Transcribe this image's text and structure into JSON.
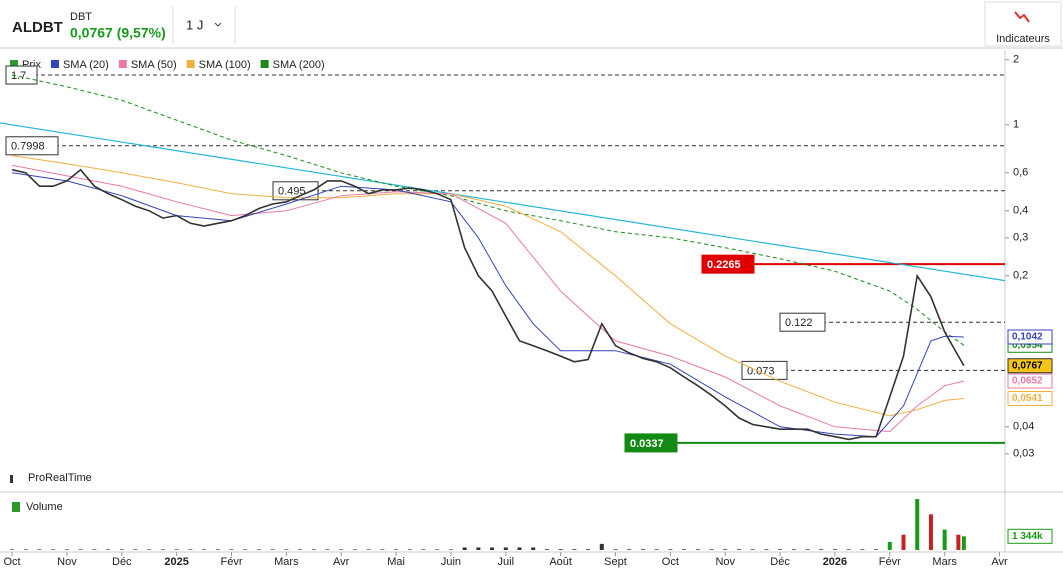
{
  "header": {
    "symbol": "ALDBT",
    "exchange": "DBT",
    "quote": "0,0767 (9,57%)",
    "period": "1 J",
    "indicators_button": "Indicateurs"
  },
  "legend": {
    "price": "Prix",
    "sma20": "SMA (20)",
    "sma50": "SMA (50)",
    "sma100": "SMA (100)",
    "sma200": "SMA (200)",
    "brand": "ProRealTime",
    "volume": "Volume"
  },
  "chart_data": {
    "type": "line",
    "log_scale": true,
    "grid": false,
    "xlim": [
      -0.22,
      18.1
    ],
    "xticks": [
      {
        "value": 0,
        "label": "Oct"
      },
      {
        "value": 1,
        "label": "Nov"
      },
      {
        "value": 2,
        "label": "Déc"
      },
      {
        "value": 3,
        "label": "2025"
      },
      {
        "value": 4,
        "label": "Févr"
      },
      {
        "value": 5,
        "label": "Mars"
      },
      {
        "value": 6,
        "label": "Avr"
      },
      {
        "value": 7,
        "label": "Mai"
      },
      {
        "value": 8,
        "label": "Juin"
      },
      {
        "value": 9,
        "label": "Juil"
      },
      {
        "value": 10,
        "label": "Août"
      },
      {
        "value": 11,
        "label": "Sept"
      },
      {
        "value": 12,
        "label": "Oct"
      },
      {
        "value": 13,
        "label": "Nov"
      },
      {
        "value": 14,
        "label": "Déc"
      },
      {
        "value": 15,
        "label": "2026"
      },
      {
        "value": 16,
        "label": "Févr"
      },
      {
        "value": 17,
        "label": "Mars"
      },
      {
        "value": 18,
        "label": "Avr"
      }
    ],
    "ylim": [
      0.0204,
      2.22
    ],
    "yticks": [
      2,
      1,
      {
        "value": 0.6,
        "label": "0,6"
      },
      {
        "value": 0.4,
        "label": "0,4"
      },
      {
        "value": 0.3,
        "label": "0,3"
      },
      {
        "value": 0.2,
        "label": "0,2"
      },
      {
        "value": 0.04,
        "label": "0,04"
      },
      {
        "value": 0.03,
        "label": "0,03"
      }
    ],
    "series": [
      {
        "name": "Prix",
        "color": "#333333",
        "last_label": "0,0767",
        "label_color": "#f5c518",
        "x": [
          0,
          0.25,
          0.5,
          0.75,
          1,
          1.25,
          1.5,
          1.75,
          2,
          2.25,
          2.5,
          2.75,
          3,
          3.25,
          3.5,
          3.75,
          4,
          4.25,
          4.5,
          4.75,
          5,
          5.25,
          5.5,
          5.75,
          6,
          6.25,
          6.5,
          6.75,
          7,
          7.25,
          7.5,
          7.75,
          8,
          8.25,
          8.5,
          8.75,
          9,
          9.25,
          9.5,
          9.75,
          10,
          10.25,
          10.5,
          10.75,
          11,
          11.25,
          11.5,
          11.75,
          12,
          12.25,
          12.5,
          12.75,
          13,
          13.25,
          13.5,
          13.75,
          14,
          14.25,
          14.5,
          14.75,
          15,
          15.25,
          15.5,
          15.75,
          16,
          16.25,
          16.5,
          16.75,
          17,
          17.25,
          17.35
        ],
        "values": [
          0.62,
          0.6,
          0.52,
          0.52,
          0.55,
          0.62,
          0.52,
          0.48,
          0.45,
          0.42,
          0.4,
          0.37,
          0.38,
          0.35,
          0.34,
          0.35,
          0.36,
          0.38,
          0.41,
          0.43,
          0.44,
          0.47,
          0.5,
          0.55,
          0.55,
          0.52,
          0.48,
          0.5,
          0.5,
          0.51,
          0.5,
          0.48,
          0.45,
          0.27,
          0.2,
          0.17,
          0.13,
          0.1,
          0.095,
          0.09,
          0.085,
          0.08,
          0.082,
          0.12,
          0.095,
          0.088,
          0.083,
          0.08,
          0.075,
          0.068,
          0.062,
          0.056,
          0.05,
          0.044,
          0.041,
          0.04,
          0.039,
          0.039,
          0.039,
          0.037,
          0.036,
          0.035,
          0.036,
          0.036,
          0.055,
          0.085,
          0.2,
          0.16,
          0.11,
          0.085,
          0.0767
        ]
      },
      {
        "name": "SMA (20)",
        "color": "#3344bb",
        "last_label": "0,1042",
        "label_color": "#ffffff",
        "x": [
          0,
          1,
          2,
          3,
          4,
          5,
          6,
          7,
          8,
          8.5,
          9,
          9.5,
          10,
          11,
          12,
          13,
          14,
          15,
          15.75,
          16.25,
          16.75,
          17,
          17.35
        ],
        "values": [
          0.6,
          0.55,
          0.47,
          0.38,
          0.36,
          0.43,
          0.52,
          0.5,
          0.44,
          0.3,
          0.18,
          0.12,
          0.09,
          0.09,
          0.078,
          0.055,
          0.04,
          0.037,
          0.036,
          0.05,
          0.1,
          0.105,
          0.1042
        ]
      },
      {
        "name": "SMA (50)",
        "color": "#e87aa8",
        "last_label": "0,0652",
        "label_color": "#ffffff",
        "x": [
          0,
          1,
          2,
          3,
          4,
          5,
          6,
          7,
          8,
          9,
          10,
          11,
          12,
          13,
          14,
          15,
          16,
          16.5,
          17,
          17.35
        ],
        "values": [
          0.65,
          0.58,
          0.52,
          0.44,
          0.38,
          0.4,
          0.47,
          0.49,
          0.48,
          0.35,
          0.17,
          0.1,
          0.085,
          0.068,
          0.05,
          0.04,
          0.038,
          0.05,
          0.062,
          0.0652
        ]
      },
      {
        "name": "SMA (100)",
        "color": "#f0b040",
        "last_label": "0,0541",
        "label_color": "#ffffff",
        "x": [
          0,
          1,
          2,
          3,
          4,
          5,
          6,
          7,
          8,
          9,
          10,
          11,
          12,
          13,
          14,
          15,
          16,
          16.5,
          17,
          17.35
        ],
        "values": [
          0.72,
          0.66,
          0.6,
          0.54,
          0.48,
          0.46,
          0.46,
          0.48,
          0.48,
          0.42,
          0.32,
          0.2,
          0.12,
          0.085,
          0.065,
          0.052,
          0.045,
          0.048,
          0.053,
          0.0541
        ]
      },
      {
        "name": "SMA (200)",
        "color": "#1a8a1a",
        "dashed": true,
        "last_label": "0,0954",
        "label_color": "#ffffff",
        "x": [
          0,
          1,
          2,
          3,
          4,
          5,
          6,
          7,
          8,
          9,
          10,
          11,
          12,
          13,
          14,
          15,
          16,
          16.5,
          17,
          17.35
        ],
        "values": [
          1.7,
          1.5,
          1.3,
          1.05,
          0.85,
          0.72,
          0.6,
          0.52,
          0.47,
          0.4,
          0.36,
          0.32,
          0.3,
          0.27,
          0.24,
          0.21,
          0.17,
          0.14,
          0.11,
          0.0954
        ]
      }
    ],
    "trendline": {
      "color": "#22b8d8",
      "x": [
        -0.22,
        18.1
      ],
      "values": [
        1.02,
        0.19
      ]
    },
    "levels": [
      {
        "value": 1.7,
        "color": "#333333"
      },
      {
        "value": 0.7998,
        "color": "#333333"
      },
      {
        "value": 0.495,
        "color": "#333333"
      },
      {
        "value": 0.2265,
        "color": "#e00000",
        "solid": true
      },
      {
        "value": 0.122,
        "color": "#333333"
      },
      {
        "value": 0.073,
        "color": "#333333"
      },
      {
        "value": 0.0337,
        "color": "#138a13",
        "solid": true
      }
    ],
    "volume": {
      "ylim": [
        0,
        5200000
      ],
      "last_label": "1 344k",
      "values": [
        60000,
        60000,
        60000,
        60000,
        60000,
        60000,
        60000,
        60000,
        60000,
        60000,
        60000,
        60000,
        60000,
        60000,
        60000,
        60000,
        60000,
        60000,
        60000,
        60000,
        60000,
        60000,
        60000,
        60000,
        60000,
        60000,
        60000,
        60000,
        60000,
        60000,
        60000,
        60000,
        60000,
        250000,
        250000,
        250000,
        250000,
        250000,
        250000,
        80000,
        80000,
        80000,
        80000,
        600000,
        70000,
        70000,
        70000,
        70000,
        70000,
        70000,
        70000,
        70000,
        70000,
        70000,
        70000,
        70000,
        70000,
        70000,
        70000,
        70000,
        70000,
        70000,
        70000,
        70000,
        800000,
        1500000,
        5000000,
        3500000,
        2000000,
        1500000,
        1344000
      ]
    }
  }
}
